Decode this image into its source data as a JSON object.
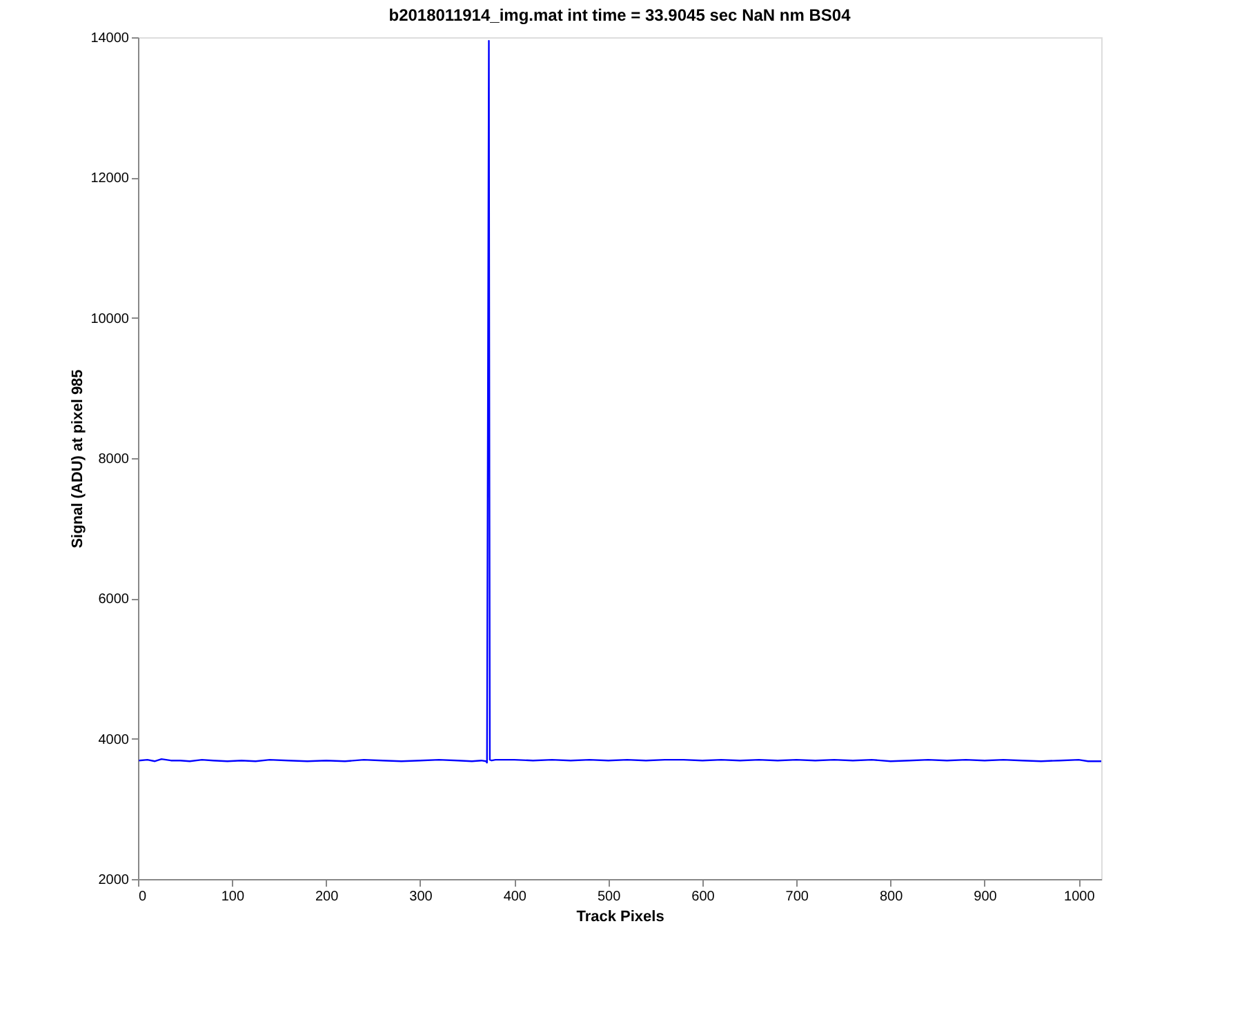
{
  "chart_data": {
    "type": "line",
    "title": "b2018011914_img.mat int time = 33.9045 sec  NaN nm BS04",
    "xlabel": "Track Pixels",
    "ylabel": "Signal (ADU) at pixel 985",
    "xlim": [
      0,
      1024
    ],
    "xticks": [
      0,
      100,
      200,
      300,
      400,
      500,
      600,
      700,
      800,
      900,
      1000
    ],
    "ylim": [
      2000,
      14000
    ],
    "yticks": [
      2000,
      4000,
      6000,
      8000,
      10000,
      12000,
      14000
    ],
    "grid": false,
    "marker": "none",
    "line_style": "solid",
    "series": [
      {
        "color": "#0000ff",
        "x": [
          1,
          10,
          18,
          25,
          35,
          45,
          55,
          68,
          80,
          95,
          110,
          125,
          140,
          160,
          180,
          200,
          220,
          240,
          260,
          280,
          300,
          320,
          340,
          355,
          365,
          370,
          371,
          373,
          374,
          376,
          380,
          400,
          420,
          440,
          460,
          480,
          500,
          520,
          540,
          560,
          580,
          600,
          620,
          640,
          660,
          680,
          700,
          720,
          740,
          760,
          780,
          800,
          820,
          840,
          860,
          880,
          900,
          920,
          940,
          960,
          980,
          1000,
          1010,
          1024
        ],
        "values": [
          3690,
          3700,
          3680,
          3710,
          3690,
          3690,
          3680,
          3700,
          3690,
          3680,
          3690,
          3680,
          3700,
          3690,
          3680,
          3690,
          3680,
          3700,
          3690,
          3680,
          3690,
          3700,
          3690,
          3680,
          3690,
          3680,
          3660,
          13950,
          3700,
          3690,
          3700,
          3700,
          3690,
          3700,
          3690,
          3700,
          3690,
          3700,
          3690,
          3700,
          3700,
          3690,
          3700,
          3690,
          3700,
          3690,
          3700,
          3690,
          3700,
          3690,
          3700,
          3680,
          3690,
          3700,
          3690,
          3700,
          3690,
          3700,
          3690,
          3680,
          3690,
          3700,
          3680,
          3680
        ]
      }
    ]
  }
}
